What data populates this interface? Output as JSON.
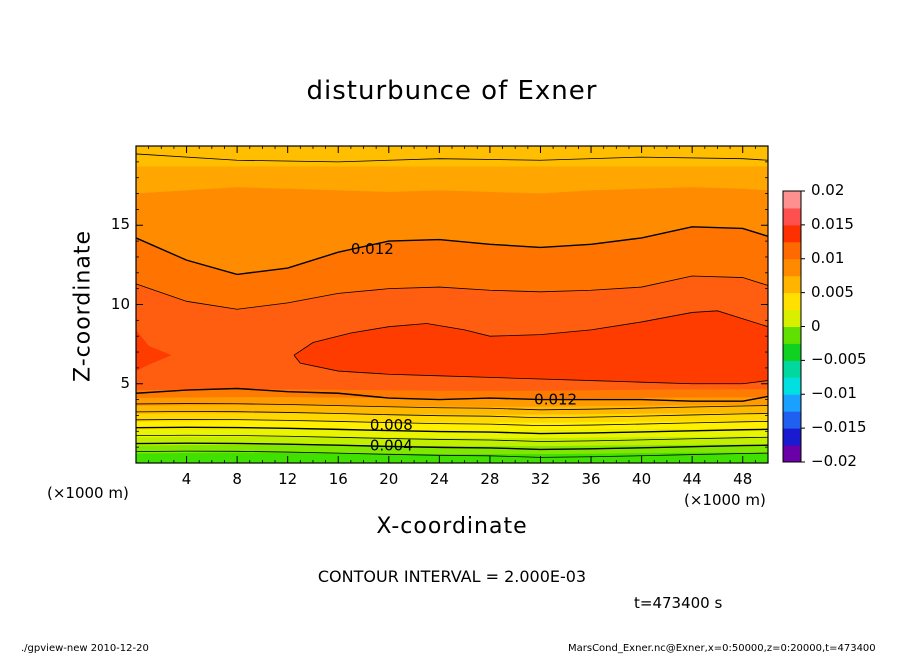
{
  "chart_data": {
    "type": "heatmap",
    "title": "disturbunce of Exner",
    "xlabel": "X-coordinate",
    "ylabel": "Z-coordinate",
    "x_unit_label": "(×1000 m)",
    "xlim": [
      0,
      50
    ],
    "ylim": [
      0,
      20
    ],
    "x_ticks": [
      4,
      8,
      12,
      16,
      20,
      24,
      28,
      32,
      36,
      40,
      44,
      48
    ],
    "y_ticks": [
      5,
      10,
      15
    ],
    "contour_interval_text": "CONTOUR INTERVAL = 2.000E-03",
    "time_text": "t=473400 s",
    "contour_labels": [
      {
        "text": "0.012",
        "x": 17,
        "z": 13.5
      },
      {
        "text": "0.012",
        "x": 31.5,
        "z": 4.0
      },
      {
        "text": "0.008",
        "x": 18.5,
        "z": 2.4
      },
      {
        "text": "0.004",
        "x": 18.5,
        "z": 1.1
      }
    ],
    "colorbar": {
      "range": [
        -0.02,
        0.02
      ],
      "tick_labels": [
        "0.02",
        "0.015",
        "0.01",
        "0.005",
        "0",
        "−0.005",
        "−0.01",
        "−0.015",
        "−0.02"
      ],
      "colors": [
        "#6a00a8",
        "#1a1ad0",
        "#2060f0",
        "#1aa0ff",
        "#00e0e0",
        "#00d8a0",
        "#10d020",
        "#60e000",
        "#d8f000",
        "#ffe000",
        "#ffb400",
        "#ff8a00",
        "#ff6a00",
        "#ff3000",
        "#ff5050",
        "#ff9090"
      ]
    },
    "field_bands_bottom_to_top": [
      {
        "from": 0.0,
        "color": "#40e000"
      },
      {
        "from": 0.6,
        "color": "#80e800"
      },
      {
        "from": 1.1,
        "color": "#c0f000"
      },
      {
        "from": 1.6,
        "color": "#e8f400"
      },
      {
        "from": 2.1,
        "color": "#fff000"
      },
      {
        "from": 2.6,
        "color": "#ffd800"
      },
      {
        "from": 3.1,
        "color": "#ffb800"
      },
      {
        "from": 3.6,
        "color": "#ff9a00"
      },
      {
        "from": 4.1,
        "color": "#ff7a00"
      },
      {
        "from": 4.6,
        "color": "#ff5a10"
      }
    ]
  },
  "footer": {
    "left": "./gpview-new  2010-12-20",
    "right": "MarsCond_Exner.nc@Exner,x=0:50000,z=0:20000,t=473400"
  }
}
